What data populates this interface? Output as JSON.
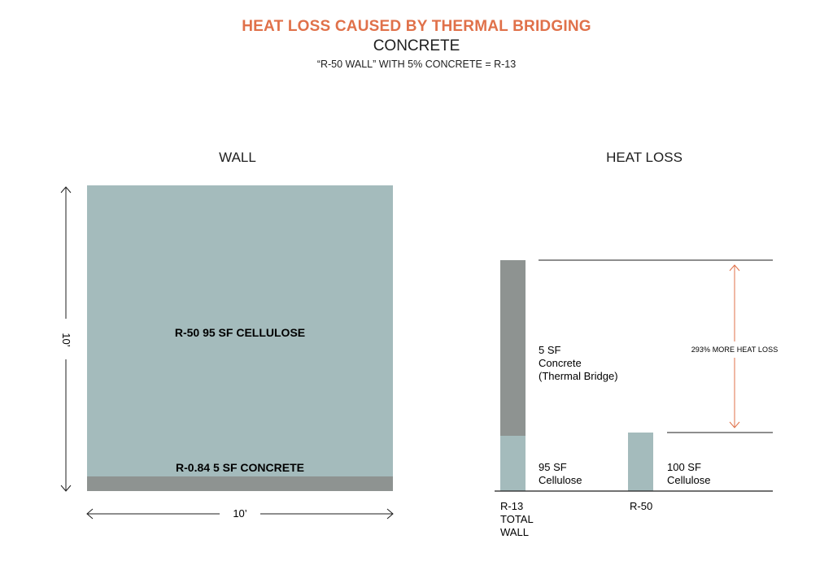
{
  "header": {
    "title": "HEAT LOSS CAUSED BY THERMAL BRIDGING",
    "subtitle": "CONCRETE",
    "caption": "“R-50 WALL” WITH 5% CONCRETE = R-13"
  },
  "wall": {
    "title": "WALL",
    "cellulose_label": "R-50 95 SF CELLULOSE",
    "concrete_label": "R-0.84 5 SF CONCRETE",
    "height_label": "10’",
    "width_label": "10’",
    "cellulose_fraction": 0.95,
    "concrete_fraction": 0.05
  },
  "heat_loss": {
    "title": "HEAT LOSS",
    "bar1": {
      "concrete_label_line1": "5 SF",
      "concrete_label_line2": "Concrete",
      "concrete_label_line3": "(Thermal Bridge)",
      "cellulose_label_line1": "95 SF",
      "cellulose_label_line2": "Cellulose",
      "axis_label_line1": "R-13",
      "axis_label_line2": "TOTAL",
      "axis_label_line3": "WALL"
    },
    "bar2": {
      "cellulose_label_line1": "100 SF",
      "cellulose_label_line2": "Cellulose",
      "axis_label": "R-50"
    },
    "comparison_label": "293% MORE HEAT LOSS"
  },
  "colors": {
    "accent": "#e0714a",
    "cellulose": "#a4bbbc",
    "concrete": "#8e9391",
    "line": "#1e1e1e"
  }
}
